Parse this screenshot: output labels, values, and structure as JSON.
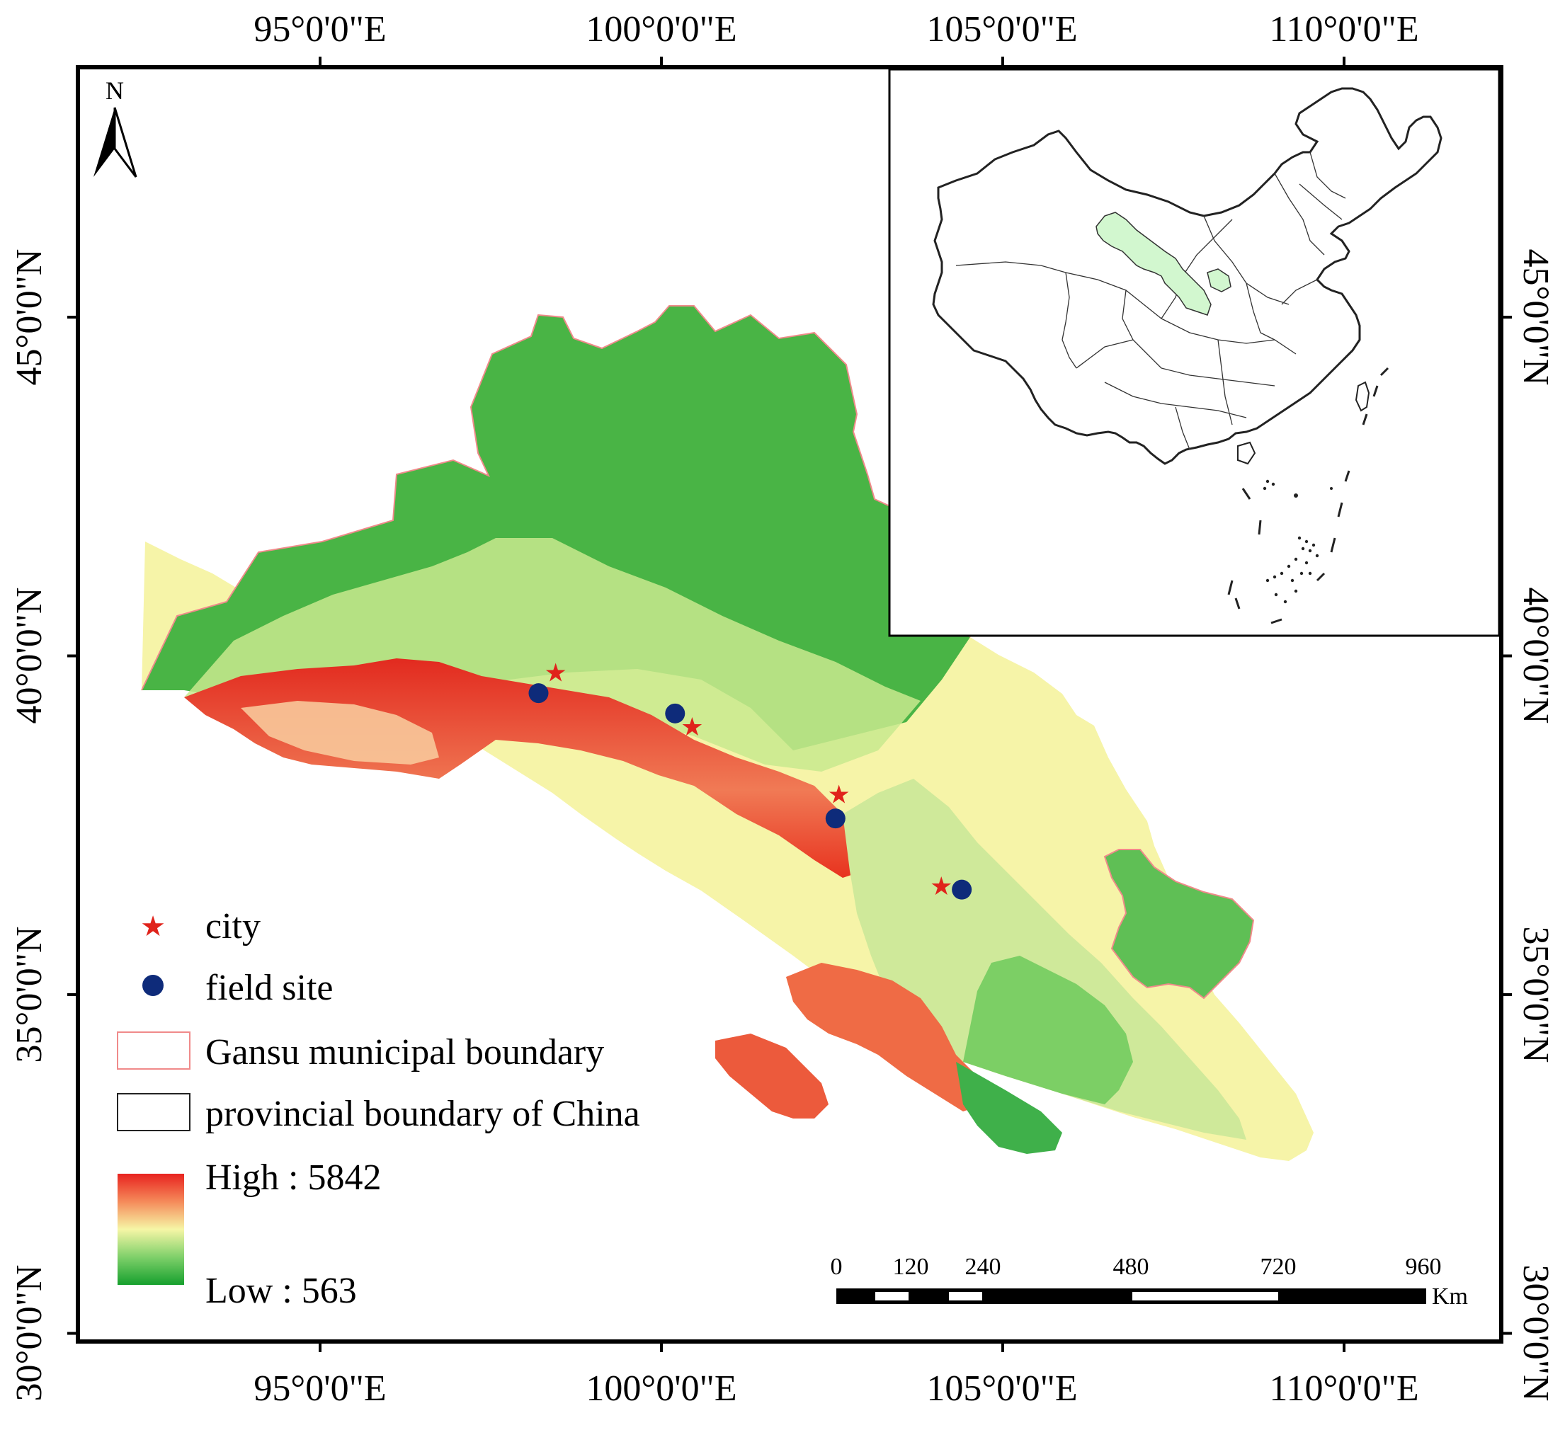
{
  "map": {
    "north_arrow_label": "N",
    "lon_labels": [
      "95°0'0\"E",
      "100°0'0\"E",
      "105°0'0\"E",
      "110°0'0\"E"
    ],
    "lat_labels": [
      "45°0'0\"N",
      "40°0'0\"N",
      "35°0'0\"N",
      "30°0'0\"N"
    ],
    "field_sites": [
      {
        "lon": 98.2,
        "lat": 39.45
      },
      {
        "lon": 100.2,
        "lat": 39.15
      },
      {
        "lon": 102.55,
        "lat": 37.6
      },
      {
        "lon": 104.4,
        "lat": 36.55
      }
    ],
    "cities": [
      {
        "lon": 98.45,
        "lat": 39.75
      },
      {
        "lon": 100.45,
        "lat": 38.95
      },
      {
        "lon": 102.6,
        "lat": 37.95
      },
      {
        "lon": 104.1,
        "lat": 36.6
      }
    ],
    "colors": {
      "high": "#e8231f",
      "mid": "#f6f6a6",
      "low": "#16a02e",
      "gansu_boundary": "#f08a8a",
      "inset_highlight": "#d2f7cf",
      "city_star": "#e0231b",
      "field_site": "#0e2b7a"
    }
  },
  "legend": {
    "city": "city",
    "field_site": "field site",
    "gansu_boundary": "Gansu municipal boundary",
    "provincial_boundary": "provincial boundary of China",
    "high": "High : 5842",
    "low": "Low : 563"
  },
  "scale_bar": {
    "ticks": [
      "0",
      "120",
      "240",
      "480",
      "720",
      "960"
    ],
    "unit": "Km"
  }
}
